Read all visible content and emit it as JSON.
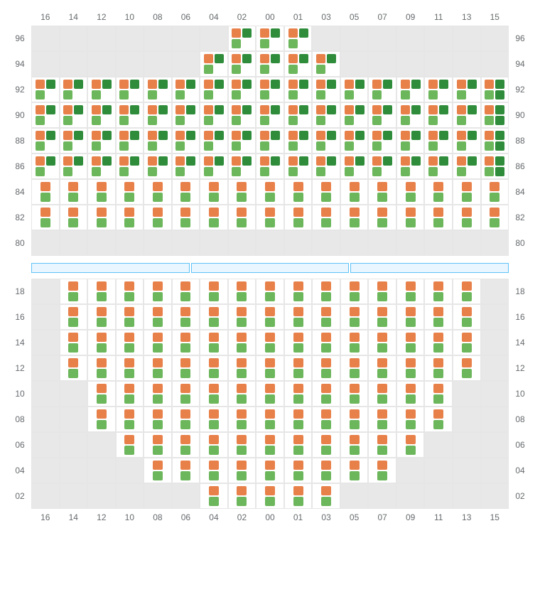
{
  "type": "seating-map",
  "colors": {
    "orange": "#e8804a",
    "lightGreen": "#6cb65b",
    "darkGreen": "#2f8c3a",
    "emptyCell": "#e8e8e8",
    "filledCell": "#ffffff",
    "gridLine": "#e6e6e6",
    "axisText": "#666a6d",
    "dividerFill": "#e9f5ff",
    "dividerBorder": "#5ec3f7"
  },
  "columns": [
    "16",
    "14",
    "12",
    "10",
    "08",
    "06",
    "04",
    "02",
    "00",
    "01",
    "03",
    "05",
    "07",
    "09",
    "11",
    "13",
    "15"
  ],
  "patterns": {
    "A": [
      "orange",
      "darkGreen",
      "lightGreen"
    ],
    "B": [
      "orange",
      "darkGreen",
      "lightGreen",
      "darkGreen"
    ],
    "C": [
      "orange",
      "lightGreen"
    ]
  },
  "commentPatterns": "Pattern A = 4-grid with bottom-right missing (orange TL, darkGreen TR, lightGreen BL). Pattern B = full 4-grid (orange TL, darkGreen TR, lightGreen BL, darkGreen BR). Pattern C = vertical 2 (orange top, lightGreen bottom).",
  "sections": [
    {
      "id": "upper",
      "axisTop": true,
      "axisBottom": false,
      "rows": [
        {
          "label": "96",
          "cells": [
            "",
            "",
            "",
            "",
            "",
            "",
            "",
            "A",
            "A",
            "A",
            "",
            "",
            "",
            "",
            "",
            "",
            ""
          ]
        },
        {
          "label": "94",
          "cells": [
            "",
            "",
            "",
            "",
            "",
            "",
            "A",
            "A",
            "A",
            "A",
            "A",
            "",
            "",
            "",
            "",
            "",
            ""
          ]
        },
        {
          "label": "92",
          "cells": [
            "A",
            "A",
            "A",
            "A",
            "A",
            "A",
            "A",
            "A",
            "A",
            "A",
            "A",
            "A",
            "A",
            "A",
            "A",
            "A",
            "B"
          ]
        },
        {
          "label": "90",
          "cells": [
            "A",
            "A",
            "A",
            "A",
            "A",
            "A",
            "A",
            "A",
            "A",
            "A",
            "A",
            "A",
            "A",
            "A",
            "A",
            "A",
            "B"
          ]
        },
        {
          "label": "88",
          "cells": [
            "A",
            "A",
            "A",
            "A",
            "A",
            "A",
            "A",
            "A",
            "A",
            "A",
            "A",
            "A",
            "A",
            "A",
            "A",
            "A",
            "B"
          ]
        },
        {
          "label": "86",
          "cells": [
            "A",
            "A",
            "A",
            "A",
            "A",
            "A",
            "A",
            "A",
            "A",
            "A",
            "A",
            "A",
            "A",
            "A",
            "A",
            "A",
            "B"
          ]
        },
        {
          "label": "84",
          "cells": [
            "C",
            "C",
            "C",
            "C",
            "C",
            "C",
            "C",
            "C",
            "C",
            "C",
            "C",
            "C",
            "C",
            "C",
            "C",
            "C",
            "C"
          ]
        },
        {
          "label": "82",
          "cells": [
            "C",
            "C",
            "C",
            "C",
            "C",
            "C",
            "C",
            "C",
            "C",
            "C",
            "C",
            "C",
            "C",
            "C",
            "C",
            "C",
            "C"
          ]
        },
        {
          "label": "80",
          "cells": [
            "",
            "",
            "",
            "",
            "",
            "",
            "",
            "",
            "",
            "",
            "",
            "",
            "",
            "",
            "",
            "",
            ""
          ]
        }
      ]
    },
    {
      "id": "lower",
      "axisTop": false,
      "axisBottom": true,
      "rows": [
        {
          "label": "18",
          "cells": [
            "",
            "C",
            "C",
            "C",
            "C",
            "C",
            "C",
            "C",
            "C",
            "C",
            "C",
            "C",
            "C",
            "C",
            "C",
            "C",
            ""
          ]
        },
        {
          "label": "16",
          "cells": [
            "",
            "C",
            "C",
            "C",
            "C",
            "C",
            "C",
            "C",
            "C",
            "C",
            "C",
            "C",
            "C",
            "C",
            "C",
            "C",
            ""
          ]
        },
        {
          "label": "14",
          "cells": [
            "",
            "C",
            "C",
            "C",
            "C",
            "C",
            "C",
            "C",
            "C",
            "C",
            "C",
            "C",
            "C",
            "C",
            "C",
            "C",
            ""
          ]
        },
        {
          "label": "12",
          "cells": [
            "",
            "C",
            "C",
            "C",
            "C",
            "C",
            "C",
            "C",
            "C",
            "C",
            "C",
            "C",
            "C",
            "C",
            "C",
            "C",
            ""
          ]
        },
        {
          "label": "10",
          "cells": [
            "",
            "",
            "C",
            "C",
            "C",
            "C",
            "C",
            "C",
            "C",
            "C",
            "C",
            "C",
            "C",
            "C",
            "C",
            "",
            ""
          ]
        },
        {
          "label": "08",
          "cells": [
            "",
            "",
            "C",
            "C",
            "C",
            "C",
            "C",
            "C",
            "C",
            "C",
            "C",
            "C",
            "C",
            "C",
            "C",
            "",
            ""
          ]
        },
        {
          "label": "06",
          "cells": [
            "",
            "",
            "",
            "C",
            "C",
            "C",
            "C",
            "C",
            "C",
            "C",
            "C",
            "C",
            "C",
            "C",
            "",
            "",
            ""
          ]
        },
        {
          "label": "04",
          "cells": [
            "",
            "",
            "",
            "",
            "C",
            "C",
            "C",
            "C",
            "C",
            "C",
            "C",
            "C",
            "C",
            "",
            "",
            "",
            ""
          ]
        },
        {
          "label": "02",
          "cells": [
            "",
            "",
            "",
            "",
            "",
            "",
            "C",
            "C",
            "C",
            "C",
            "C",
            "",
            "",
            "",
            "",
            "",
            ""
          ]
        }
      ]
    }
  ],
  "dividerSegments": 3
}
